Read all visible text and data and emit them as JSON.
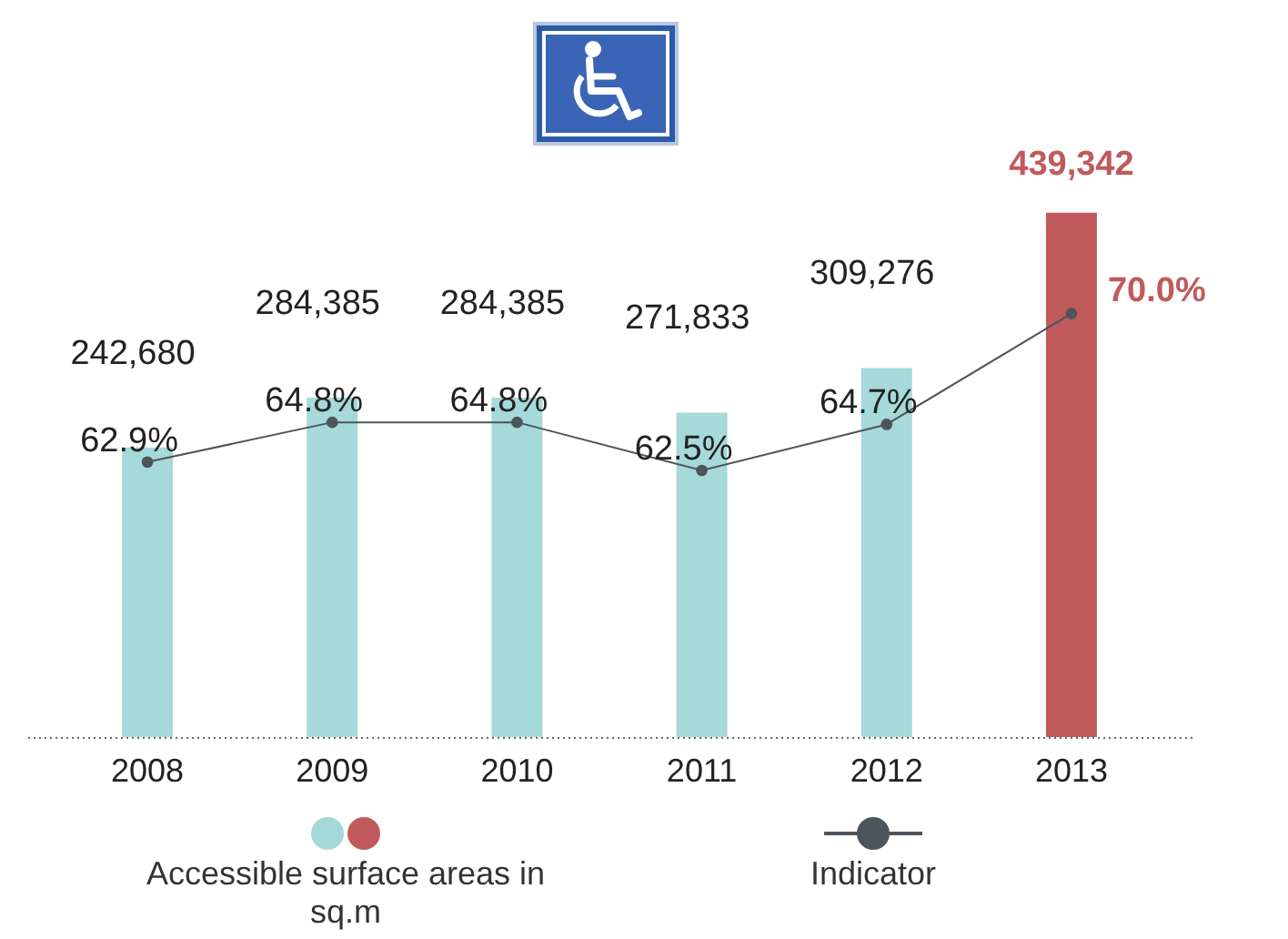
{
  "chart_data": {
    "type": "bar",
    "categories": [
      "2008",
      "2009",
      "2010",
      "2011",
      "2012",
      "2013"
    ],
    "series": [
      {
        "name": "Accessible surface areas in sq.m",
        "colors": [
          "#a6d9d9",
          "#a6d9d9",
          "#a6d9d9",
          "#a6d9d9",
          "#a6d9d9",
          "#c05a5c"
        ],
        "values": [
          242680,
          284385,
          284385,
          271833,
          309276,
          439342
        ],
        "value_labels": [
          "242,680",
          "284,385",
          "284,385",
          "271,833",
          "309,276",
          "439,342"
        ]
      },
      {
        "name": "Indicator",
        "type": "line",
        "axis": "y2",
        "color": "#4d545a",
        "values": [
          62.9,
          64.8,
          64.8,
          62.5,
          64.7,
          70.0
        ],
        "value_labels": [
          "62.9%",
          "64.8%",
          "64.8%",
          "62.5%",
          "64.7%",
          "70.0%"
        ]
      }
    ],
    "marker": "circle",
    "line_style": "solid",
    "legend": "bottom"
  }
}
